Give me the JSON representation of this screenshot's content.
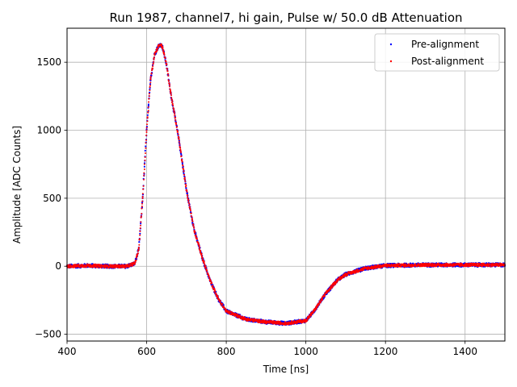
{
  "chart_data": {
    "type": "scatter",
    "title": "Run 1987, channel7, hi gain, Pulse w/ 50.0 dB Attenuation",
    "xlabel": "Time [ns]",
    "ylabel": "Amplitude [ADC Counts]",
    "xlim": [
      400,
      1500
    ],
    "ylim": [
      -550,
      1750
    ],
    "xticks": [
      400,
      600,
      800,
      1000,
      1200,
      1400
    ],
    "yticks": [
      -500,
      0,
      500,
      1000,
      1500
    ],
    "grid": true,
    "legend_position": "top-right",
    "series": [
      {
        "name": "Pre-alignment",
        "color": "#0000ff",
        "x": [
          400,
          450,
          500,
          550,
          570,
          580,
          590,
          600,
          610,
          620,
          630,
          635,
          640,
          650,
          660,
          680,
          700,
          720,
          740,
          760,
          780,
          800,
          850,
          900,
          950,
          1000,
          1020,
          1050,
          1080,
          1100,
          1150,
          1200,
          1300,
          1400,
          1500
        ],
        "y": [
          0,
          5,
          0,
          0,
          20,
          120,
          500,
          1000,
          1380,
          1560,
          1620,
          1630,
          1610,
          1480,
          1280,
          950,
          560,
          260,
          60,
          -110,
          -240,
          -330,
          -390,
          -410,
          -420,
          -400,
          -330,
          -200,
          -100,
          -60,
          -15,
          5,
          10,
          10,
          10
        ]
      },
      {
        "name": "Post-alignment",
        "color": "#ff0000",
        "x": [
          400,
          450,
          500,
          550,
          570,
          580,
          590,
          600,
          610,
          620,
          630,
          635,
          640,
          650,
          660,
          680,
          700,
          720,
          740,
          760,
          780,
          800,
          850,
          900,
          950,
          1000,
          1020,
          1050,
          1080,
          1100,
          1150,
          1200,
          1300,
          1400,
          1500
        ],
        "y": [
          0,
          5,
          0,
          0,
          20,
          120,
          500,
          1000,
          1380,
          1560,
          1620,
          1630,
          1610,
          1480,
          1280,
          950,
          560,
          260,
          60,
          -110,
          -240,
          -330,
          -390,
          -410,
          -420,
          -400,
          -330,
          -200,
          -100,
          -60,
          -15,
          5,
          10,
          10,
          10
        ]
      }
    ]
  }
}
